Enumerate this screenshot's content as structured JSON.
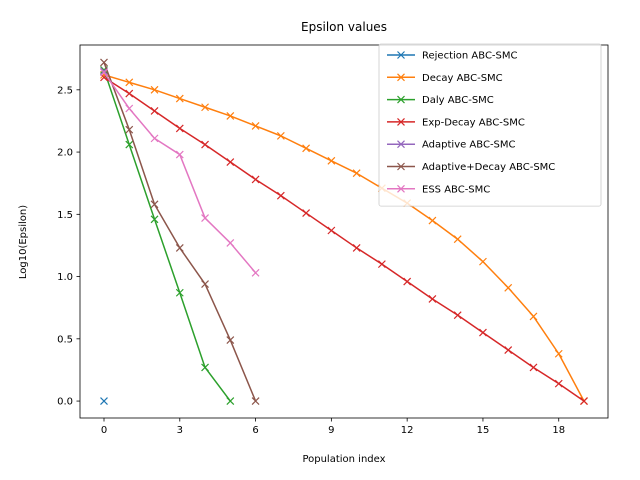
{
  "chart_data": {
    "type": "line",
    "title": "Epsilon values",
    "xlabel": "Population index",
    "ylabel": "Log10(Epsilon)",
    "xlim": [
      -0.95,
      19.95
    ],
    "ylim": [
      -0.136,
      2.86
    ],
    "xticks": [
      0,
      3,
      6,
      9,
      12,
      15,
      18
    ],
    "yticks": [
      0.0,
      0.5,
      1.0,
      1.5,
      2.0,
      2.5
    ],
    "xtick_labels": [
      "0",
      "3",
      "6",
      "9",
      "12",
      "15",
      "18"
    ],
    "ytick_labels": [
      "0.0",
      "0.5",
      "1.0",
      "1.5",
      "2.0",
      "2.5"
    ],
    "marker": "x",
    "legend_position": "top-right",
    "series": [
      {
        "name": "Rejection ABC-SMC",
        "color": "#1f77b4",
        "x": [
          0
        ],
        "values": [
          0.0
        ]
      },
      {
        "name": "Decay ABC-SMC",
        "color": "#ff7f0e",
        "x": [
          0,
          1,
          2,
          3,
          4,
          5,
          6,
          7,
          8,
          9,
          10,
          11,
          12,
          13,
          14,
          15,
          16,
          17,
          18,
          19
        ],
        "values": [
          2.62,
          2.56,
          2.5,
          2.43,
          2.36,
          2.29,
          2.21,
          2.13,
          2.03,
          1.93,
          1.83,
          1.71,
          1.59,
          1.45,
          1.3,
          1.12,
          0.91,
          0.68,
          0.38,
          0.0
        ]
      },
      {
        "name": "Daly ABC-SMC",
        "color": "#2ca02c",
        "x": [
          0,
          1,
          2,
          3,
          4,
          5
        ],
        "values": [
          2.66,
          2.06,
          1.46,
          0.87,
          0.27,
          0.0
        ]
      },
      {
        "name": "Exp-Decay ABC-SMC",
        "color": "#d62728",
        "x": [
          0,
          1,
          2,
          3,
          4,
          5,
          6,
          7,
          8,
          9,
          10,
          11,
          12,
          13,
          14,
          15,
          16,
          17,
          18,
          19
        ],
        "values": [
          2.6,
          2.47,
          2.33,
          2.19,
          2.06,
          1.92,
          1.78,
          1.65,
          1.51,
          1.37,
          1.23,
          1.1,
          0.96,
          0.82,
          0.69,
          0.55,
          0.41,
          0.27,
          0.14,
          0.0
        ]
      },
      {
        "name": "Adaptive ABC-SMC",
        "color": "#9467bd",
        "x": [
          0
        ],
        "values": [
          2.65
        ]
      },
      {
        "name": "Adaptive+Decay ABC-SMC",
        "color": "#8c564b",
        "x": [
          0,
          1,
          2,
          3,
          4,
          5,
          6
        ],
        "values": [
          2.72,
          2.18,
          1.58,
          1.23,
          0.94,
          0.49,
          0.0
        ]
      },
      {
        "name": "ESS ABC-SMC",
        "color": "#e377c2",
        "x": [
          0,
          1,
          2,
          3,
          4,
          5,
          6
        ],
        "values": [
          2.64,
          2.35,
          2.11,
          1.98,
          1.47,
          1.27,
          1.03
        ]
      }
    ]
  }
}
